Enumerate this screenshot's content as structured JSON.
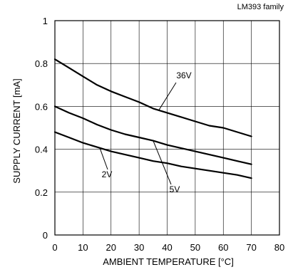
{
  "chart_data": {
    "type": "line",
    "family_label": "LM393 family",
    "xlabel": "AMBIENT TEMPERATURE [°C]",
    "ylabel": "SUPPLY CURRENT [mA]",
    "xlim": [
      0,
      80
    ],
    "ylim": [
      0,
      1
    ],
    "xticks": [
      0,
      10,
      20,
      30,
      40,
      50,
      60,
      70,
      80
    ],
    "yticks": [
      0,
      0.2,
      0.4,
      0.6,
      0.8,
      1
    ],
    "ytick_labels": [
      "0",
      "0.2",
      "0.4",
      "0.6",
      "0.8",
      "1"
    ],
    "grid": true,
    "series": [
      {
        "name": "36V",
        "x": [
          0,
          5,
          10,
          15,
          20,
          25,
          30,
          35,
          40,
          45,
          50,
          55,
          60,
          65,
          70
        ],
        "y": [
          0.82,
          0.78,
          0.74,
          0.7,
          0.67,
          0.645,
          0.62,
          0.59,
          0.57,
          0.55,
          0.53,
          0.51,
          0.5,
          0.48,
          0.46
        ]
      },
      {
        "name": "5V",
        "x": [
          0,
          5,
          10,
          15,
          20,
          25,
          30,
          35,
          40,
          45,
          50,
          55,
          60,
          65,
          70
        ],
        "y": [
          0.6,
          0.57,
          0.545,
          0.515,
          0.49,
          0.47,
          0.455,
          0.44,
          0.42,
          0.405,
          0.39,
          0.375,
          0.36,
          0.345,
          0.33
        ]
      },
      {
        "name": "2V",
        "x": [
          0,
          5,
          10,
          15,
          20,
          25,
          30,
          35,
          40,
          45,
          50,
          55,
          60,
          65,
          70
        ],
        "y": [
          0.48,
          0.455,
          0.43,
          0.41,
          0.39,
          0.375,
          0.36,
          0.345,
          0.335,
          0.32,
          0.31,
          0.3,
          0.29,
          0.28,
          0.265
        ]
      }
    ],
    "annotations": [
      {
        "series": "36V",
        "text": "36V"
      },
      {
        "series": "5V",
        "text": "5V"
      },
      {
        "series": "2V",
        "text": "2V"
      }
    ]
  }
}
